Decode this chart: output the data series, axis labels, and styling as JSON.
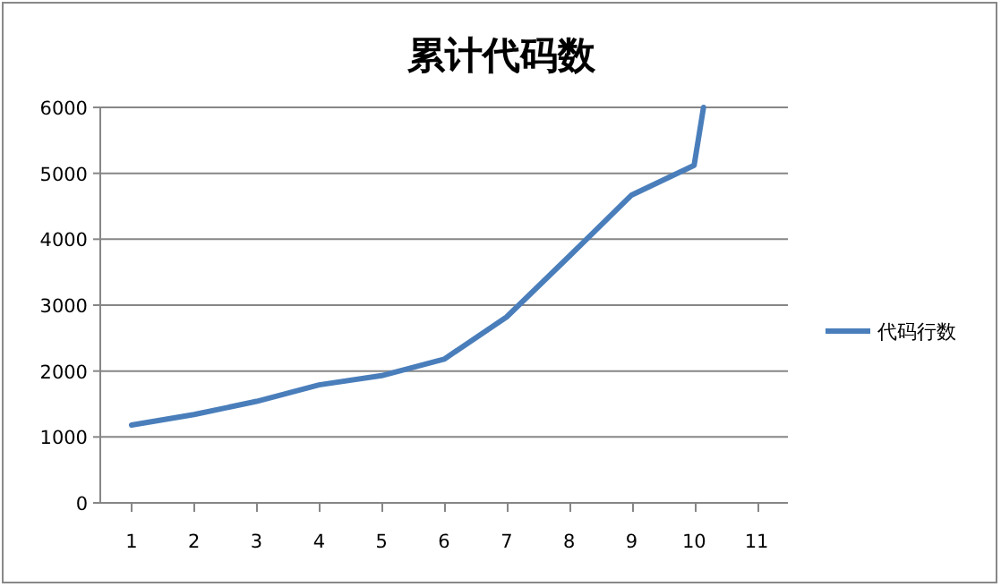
{
  "chart_data": {
    "type": "line",
    "title": "累计代码数",
    "x": [
      1,
      2,
      3,
      4,
      5,
      6,
      7,
      8,
      9,
      10,
      10.15
    ],
    "series": [
      {
        "name": "代码行数",
        "color": "#4a7ebb",
        "values": [
          1180,
          1340,
          1540,
          1790,
          1930,
          2180,
          2820,
          3740,
          4670,
          5120,
          6000
        ]
      }
    ],
    "xlim": [
      0.5,
      11.5
    ],
    "xticks": [
      1,
      2,
      3,
      4,
      5,
      6,
      7,
      8,
      9,
      10,
      11
    ],
    "ylim": [
      0,
      6000
    ],
    "yticks": [
      0,
      1000,
      2000,
      3000,
      4000,
      5000,
      6000
    ],
    "grid": "y",
    "legend": "right",
    "marker": "none",
    "line_style": "solid"
  }
}
